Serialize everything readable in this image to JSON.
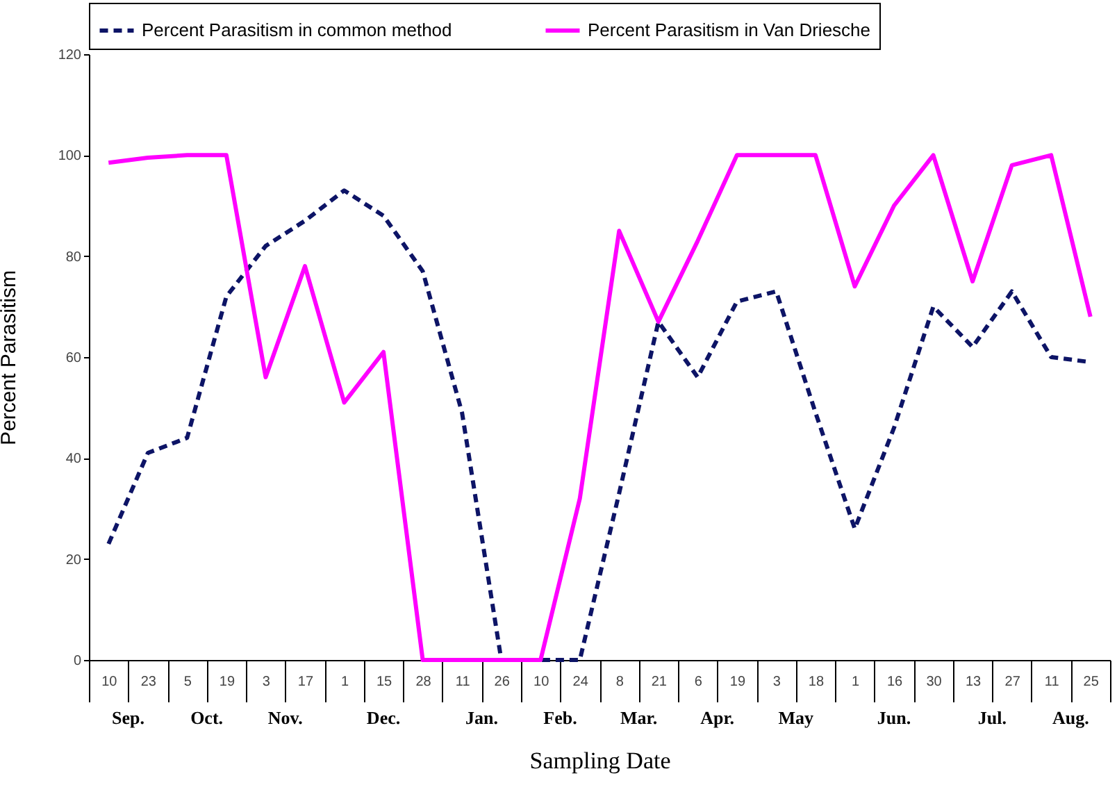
{
  "chart_data": {
    "type": "line",
    "xlabel": "Sampling Date",
    "ylabel": "Percent Parasitism",
    "categories": [
      "10",
      "23",
      "5",
      "19",
      "3",
      "17",
      "1",
      "15",
      "28",
      "11",
      "26",
      "10",
      "24",
      "8",
      "21",
      "6",
      "19",
      "3",
      "18",
      "1",
      "16",
      "30",
      "13",
      "27",
      "11",
      "25"
    ],
    "annotations": [
      "Sep.",
      "Oct.",
      "Nov.",
      "Dec.",
      "Jan.",
      "Feb.",
      "Mar.",
      "Apr.",
      "May",
      "Jun.",
      "Jul.",
      "Aug."
    ],
    "series": [
      {
        "name": "Percent Parasitism in common method",
        "color": "#0d1466",
        "line_style": "dashed",
        "values": [
          23,
          41,
          44,
          72,
          82,
          87,
          93,
          88,
          77,
          49,
          0,
          0,
          0,
          33,
          67,
          56,
          71,
          73,
          49,
          26,
          46,
          70,
          62,
          73,
          60,
          59
        ]
      },
      {
        "name": "Percent Parasitism in Van Driesche",
        "color": "#ff00ff",
        "line_style": "solid",
        "values": [
          98.5,
          99.5,
          100,
          100,
          56,
          78,
          51,
          61,
          0,
          0,
          0,
          0,
          32,
          85,
          67,
          83,
          100,
          100,
          100,
          74,
          90,
          100,
          75,
          98,
          100,
          68
        ]
      }
    ],
    "ylim": [
      0,
      120
    ],
    "yticks": [
      0,
      20,
      40,
      60,
      80,
      100,
      120
    ],
    "grid": false,
    "legend": "top",
    "marker": "none"
  }
}
